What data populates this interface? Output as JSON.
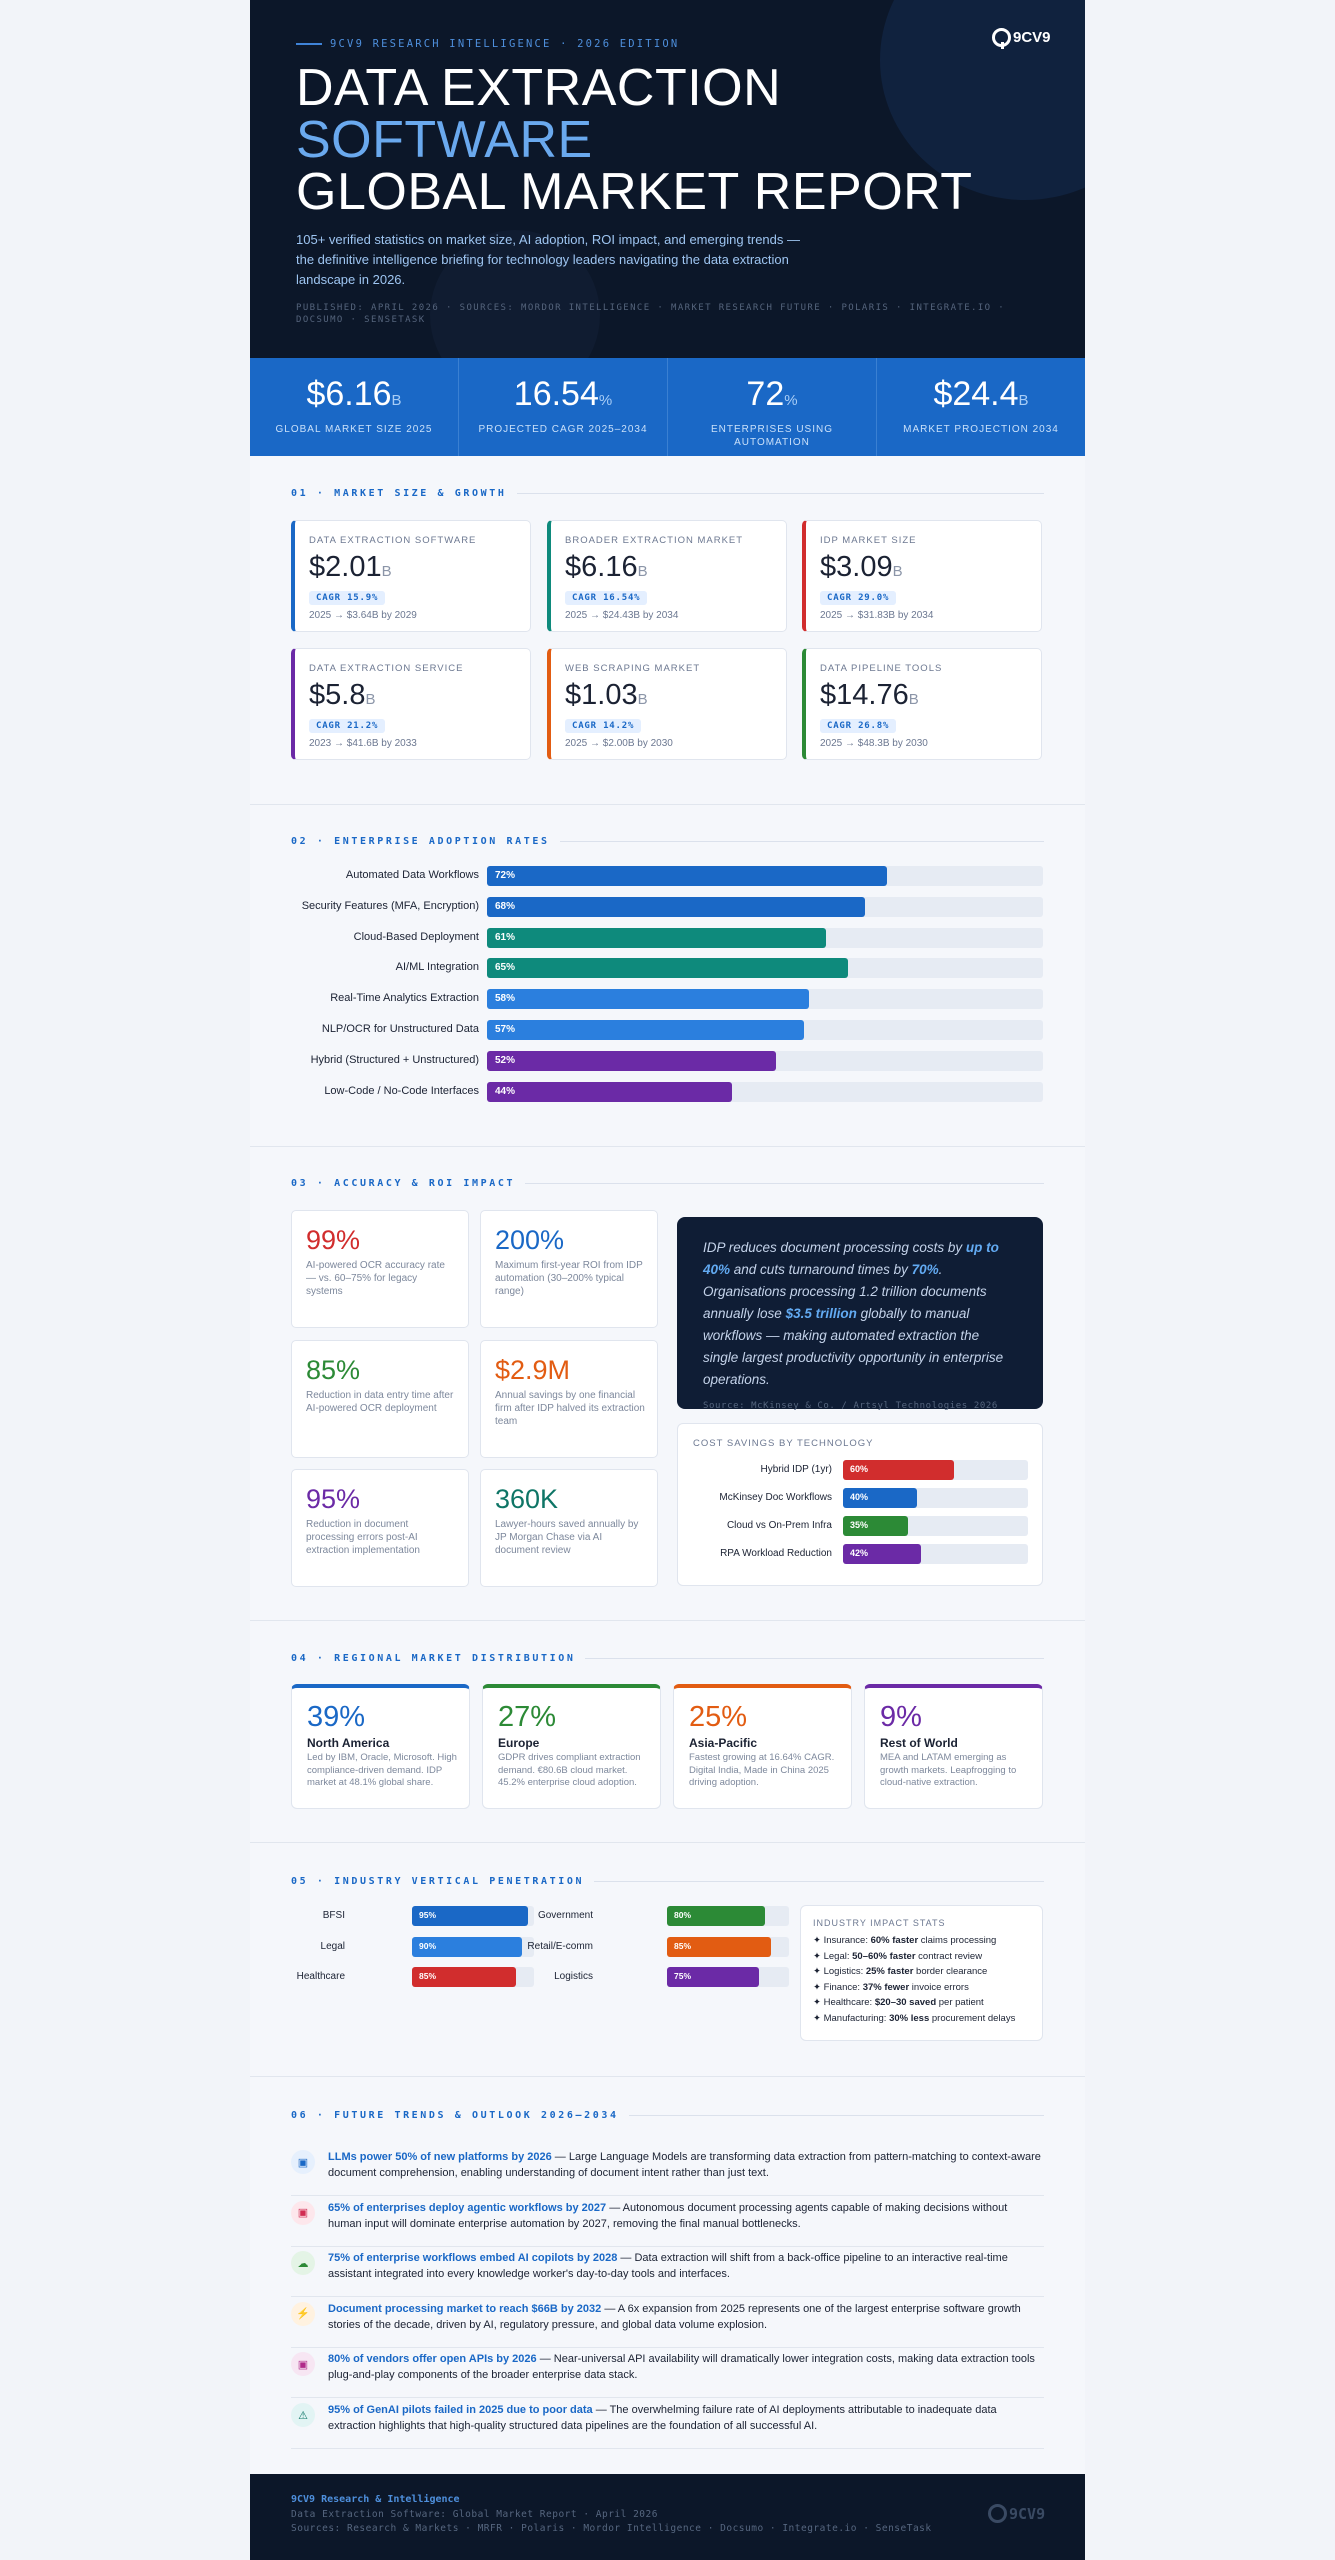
{
  "hero": {
    "kicker": "9CV9 RESEARCH INTELLIGENCE · 2026 EDITION",
    "logo_text": "9CV9",
    "title_line1": "DATA EXTRACTION",
    "title_line2": "SOFTWARE",
    "title_line3": "GLOBAL MARKET REPORT",
    "lede": "105+ verified statistics on market size, AI adoption, ROI impact, and emerging trends — the definitive intelligence briefing for technology leaders navigating the data extraction landscape in 2026.",
    "published": "PUBLISHED: APRIL 2026 · SOURCES: MORDOR INTELLIGENCE · MARKET RESEARCH FUTURE · POLARIS · INTEGRATE.IO · DOCSUMO · SENSETASK"
  },
  "headline_stats": [
    {
      "value": "$6.16",
      "unit": "B",
      "label": "GLOBAL MARKET SIZE 2025"
    },
    {
      "value": "16.54",
      "unit": "%",
      "label": "PROJECTED CAGR 2025–2034"
    },
    {
      "value": "72",
      "unit": "%",
      "label": "ENTERPRISES USING AUTOMATION"
    },
    {
      "value": "$24.4",
      "unit": "B",
      "label": "MARKET PROJECTION 2034"
    }
  ],
  "sections": {
    "s1": "01 · MARKET SIZE & GROWTH",
    "s2": "02 · ENTERPRISE ADOPTION RATES",
    "s3": "03 · ACCURACY & ROI IMPACT",
    "s4": "04 · REGIONAL MARKET DISTRIBUTION",
    "s5": "05 · INDUSTRY VERTICAL PENETRATION",
    "s6": "06 · FUTURE TRENDS & OUTLOOK 2026–2034"
  },
  "market_cards": [
    {
      "title": "DATA EXTRACTION SOFTWARE",
      "value": "$2.01",
      "unit": "B",
      "cagr": "CAGR 15.9%",
      "note": "2025 → $3.64B by 2029",
      "color": "#1a68c6"
    },
    {
      "title": "BROADER EXTRACTION MARKET",
      "value": "$6.16",
      "unit": "B",
      "cagr": "CAGR 16.54%",
      "note": "2025 → $24.43B by 2034",
      "color": "#0e8a7c"
    },
    {
      "title": "IDP MARKET SIZE",
      "value": "$3.09",
      "unit": "B",
      "cagr": "CAGR 29.0%",
      "note": "2025 → $31.83B by 2034",
      "color": "#d12d2d"
    },
    {
      "title": "DATA EXTRACTION SERVICE",
      "value": "$5.8",
      "unit": "B",
      "cagr": "CAGR 21.2%",
      "note": "2023 → $41.6B by 2033",
      "color": "#6b2aa6"
    },
    {
      "title": "WEB SCRAPING MARKET",
      "value": "$1.03",
      "unit": "B",
      "cagr": "CAGR 14.2%",
      "note": "2025 → $2.00B by 2030",
      "color": "#e25c12"
    },
    {
      "title": "DATA PIPELINE TOOLS",
      "value": "$14.76",
      "unit": "B",
      "cagr": "CAGR 26.8%",
      "note": "2025 → $48.3B by 2030",
      "color": "#2c8a36"
    }
  ],
  "adoption": [
    {
      "label": "Automated Data Workflows",
      "pct": "72%",
      "value": 72,
      "color": "#1a68c6"
    },
    {
      "label": "Security Features (MFA, Encryption)",
      "pct": "68%",
      "value": 68,
      "color": "#1a68c6"
    },
    {
      "label": "Cloud-Based Deployment",
      "pct": "61%",
      "value": 61,
      "color": "#0e8a7c"
    },
    {
      "label": "AI/ML Integration",
      "pct": "65%",
      "value": 65,
      "color": "#0e8a7c"
    },
    {
      "label": "Real-Time Analytics Extraction",
      "pct": "58%",
      "value": 58,
      "color": "#2b7fde"
    },
    {
      "label": "NLP/OCR for Unstructured Data",
      "pct": "57%",
      "value": 57,
      "color": "#2b7fde"
    },
    {
      "label": "Hybrid (Structured + Unstructured)",
      "pct": "52%",
      "value": 52,
      "color": "#6b2aa6"
    },
    {
      "label": "Low-Code / No-Code Interfaces",
      "pct": "44%",
      "value": 44,
      "color": "#6b2aa6"
    }
  ],
  "roi_cards": [
    {
      "value": "99%",
      "desc": "AI-powered OCR accuracy rate — vs. 60–75% for legacy systems",
      "color": "#d12d2d"
    },
    {
      "value": "200%",
      "desc": "Maximum first-year ROI from IDP automation (30–200% typical range)",
      "color": "#1a68c6"
    },
    {
      "value": "85%",
      "desc": "Reduction in data entry time after AI-powered OCR deployment",
      "color": "#2c8a36"
    },
    {
      "value": "$2.9M",
      "desc": "Annual savings by one financial firm after IDP halved its extraction team",
      "color": "#e25c12"
    },
    {
      "value": "95%",
      "desc": "Reduction in document processing errors post-AI extraction implementation",
      "color": "#6b2aa6"
    },
    {
      "value": "360K",
      "desc": "Lawyer-hours saved annually by JP Morgan Chase via AI document review",
      "color": "#0e7566"
    }
  ],
  "quote": {
    "p1": "IDP reduces document processing costs by ",
    "b1": "up to 40%",
    "p2": " and cuts turnaround times by ",
    "b2": "70%",
    "p3": ". Organisations processing 1.2 trillion documents annually lose ",
    "b3": "$3.5 trillion",
    "p4": " globally to manual workflows — making automated extraction the single largest productivity opportunity in enterprise operations.",
    "source": "Source: McKinsey & Co. / Artsyl Technologies 2026"
  },
  "cost_savings": {
    "title": "COST SAVINGS BY TECHNOLOGY",
    "rows": [
      {
        "label": "Hybrid IDP (1yr)",
        "pct": "60%",
        "value": 60,
        "color": "#d12d2d"
      },
      {
        "label": "McKinsey Doc Workflows",
        "pct": "40%",
        "value": 40,
        "color": "#1a68c6"
      },
      {
        "label": "Cloud vs On-Prem Infra",
        "pct": "35%",
        "value": 35,
        "color": "#2c8a36"
      },
      {
        "label": "RPA Workload Reduction",
        "pct": "42%",
        "value": 42,
        "color": "#6b2aa6"
      }
    ]
  },
  "regions": [
    {
      "value": "39%",
      "name": "North America",
      "desc": "Led by IBM, Oracle, Microsoft. High compliance-driven demand. IDP market at 48.1% global share.",
      "color": "#1a68c6"
    },
    {
      "value": "27%",
      "name": "Europe",
      "desc": "GDPR drives compliant extraction demand. €80.6B cloud market. 45.2% enterprise cloud adoption.",
      "color": "#2c8a36"
    },
    {
      "value": "25%",
      "name": "Asia-Pacific",
      "desc": "Fastest growing at 16.64% CAGR. Digital India, Made in China 2025 driving adoption.",
      "color": "#e25c12"
    },
    {
      "value": "9%",
      "name": "Rest of World",
      "desc": "MEA and LATAM emerging as growth markets. Leapfrogging to cloud-native extraction.",
      "color": "#6b2aa6"
    }
  ],
  "industry_left": [
    {
      "label": "BFSI",
      "pct": "95%",
      "value": 95,
      "color": "#1a68c6"
    },
    {
      "label": "Legal",
      "pct": "90%",
      "value": 90,
      "color": "#2b7fde"
    },
    {
      "label": "Healthcare",
      "pct": "85%",
      "value": 85,
      "color": "#d12d2d"
    }
  ],
  "industry_right": [
    {
      "label": "Government",
      "pct": "80%",
      "value": 80,
      "color": "#2c8a36"
    },
    {
      "label": "Retail/E-comm",
      "pct": "85%",
      "value": 85,
      "color": "#e25c12"
    },
    {
      "label": "Logistics",
      "pct": "75%",
      "value": 75,
      "color": "#6b2aa6"
    }
  ],
  "impact_stats": {
    "title": "INDUSTRY IMPACT STATS",
    "items": [
      {
        "head": "Insurance: ",
        "bold": "60% faster",
        "tail": " claims processing"
      },
      {
        "head": "Legal: ",
        "bold": "50–60% faster",
        "tail": " contract review"
      },
      {
        "head": "Logistics: ",
        "bold": "25% faster",
        "tail": " border clearance"
      },
      {
        "head": "Finance: ",
        "bold": "37% fewer",
        "tail": " invoice errors"
      },
      {
        "head": "Healthcare: ",
        "bold": "$20–30 saved",
        "tail": " per patient"
      },
      {
        "head": "Manufacturing: ",
        "bold": "30% less",
        "tail": " procurement delays"
      }
    ]
  },
  "trends": [
    {
      "icon": "robot-icon",
      "glyph": "▣",
      "bg": "#e6f0fd",
      "fg": "#1a68c6",
      "head": "LLMs power 50% of new platforms by 2026",
      "body": " — Large Language Models are transforming data extraction from pattern-matching to context-aware document comprehension, enabling understanding of document intent rather than just text."
    },
    {
      "icon": "agent-icon",
      "glyph": "▣",
      "bg": "#fde7ec",
      "fg": "#d12d52",
      "head": "65% of enterprises deploy agentic workflows by 2027",
      "body": " — Autonomous document processing agents capable of making decisions without human input will dominate enterprise automation by 2027, removing the final manual bottlenecks."
    },
    {
      "icon": "cloud-icon",
      "glyph": "☁",
      "bg": "#e4f4e6",
      "fg": "#2c8a36",
      "head": "75% of enterprise workflows embed AI copilots by 2028",
      "body": " — Data extraction will shift from a back-office pipeline to an interactive real-time assistant integrated into every knowledge worker's day-to-day tools and interfaces."
    },
    {
      "icon": "lightning-icon",
      "glyph": "⚡",
      "bg": "#fff2e0",
      "fg": "#e28a12",
      "head": "Document processing market to reach $66B by 2032",
      "body": " — A 6x expansion from 2025 represents one of the largest enterprise software growth stories of the decade, driven by AI, regulatory pressure, and global data volume explosion."
    },
    {
      "icon": "plug-icon",
      "glyph": "▣",
      "bg": "#f7e6f3",
      "fg": "#b02a8a",
      "head": "80% of vendors offer open APIs by 2026",
      "body": " — Near-universal API availability will dramatically lower integration costs, making data extraction tools plug-and-play components of the broader enterprise data stack."
    },
    {
      "icon": "warning-icon",
      "glyph": "⚠",
      "bg": "#e2f4f4",
      "fg": "#0e7566",
      "head": "95% of GenAI pilots failed in 2025 due to poor data",
      "body": " — The overwhelming failure rate of AI deployments attributable to inadequate data extraction highlights that high-quality structured data pipelines are the foundation of all successful AI."
    }
  ],
  "footer": {
    "brand": "9CV9 Research & Intelligence",
    "line1": "Data Extraction Software: Global Market Report · April 2026",
    "line2": "Sources: Research & Markets · MRFR · Polaris · Mordor Intelligence · Docsumo · Integrate.io · SenseTask",
    "logo_text": "9CV9"
  }
}
